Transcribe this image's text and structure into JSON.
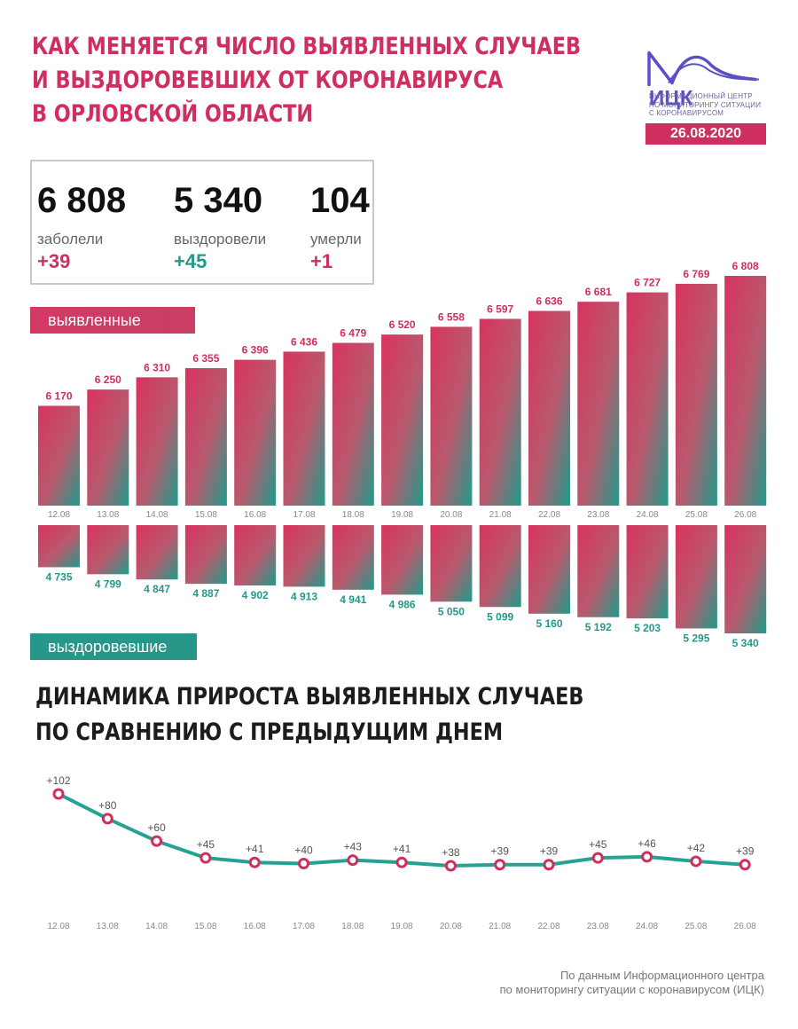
{
  "header": {
    "title_lines": [
      "КАК МЕНЯЕТСЯ ЧИСЛО ВЫЯВЛЕННЫХ СЛУЧАЕВ",
      "И ВЫЗДОРОВЕВШИХ ОТ КОРОНАВИРУСА",
      "В ОРЛОВСКОЙ ОБЛАСТИ"
    ],
    "logo_text": "ИЦК",
    "logo_caption": [
      "ИНФОРМАЦИОННЫЙ ЦЕНТР",
      "ПО МОНИТОРИНГУ СИТУАЦИИ",
      "С КОРОНАВИРУСОМ"
    ],
    "date": "26.08.2020"
  },
  "summary": [
    {
      "value": "6 808",
      "label": "заболели",
      "delta": "+39"
    },
    {
      "value": "5 340",
      "label": "выздоровели",
      "delta": "+45"
    },
    {
      "value": "104",
      "label": "умерли",
      "delta": "+1"
    }
  ],
  "colors": {
    "accent_red": "#cf2f5e",
    "accent_green": "#23988a",
    "line": "#25a294"
  },
  "tags": {
    "cases": "выявленные случаи",
    "recovered": "выздоровевшие"
  },
  "subtitle_lines": [
    "ДИНАМИКА ПРИРОСТА ВЫЯВЛЕННЫХ СЛУЧАЕВ",
    "ПО СРАВНЕНИЮ С ПРЕДЫДУЩИМ ДНЕМ"
  ],
  "source_lines": [
    "По данным Информационного центра",
    "по мониторингу ситуации с коронавирусом (ИЦК)"
  ],
  "chart_data": [
    {
      "type": "bar",
      "categories": [
        "12.08",
        "13.08",
        "14.08",
        "15.08",
        "16.08",
        "17.08",
        "18.08",
        "19.08",
        "20.08",
        "21.08",
        "22.08",
        "23.08",
        "24.08",
        "25.08",
        "26.08"
      ],
      "series": [
        {
          "name": "выявленные случаи",
          "values": [
            6170,
            6250,
            6310,
            6355,
            6396,
            6436,
            6479,
            6520,
            6558,
            6597,
            6636,
            6681,
            6727,
            6769,
            6808
          ],
          "labels": [
            "6 170",
            "6 250",
            "6 310",
            "6 355",
            "6 396",
            "6 436",
            "6 479",
            "6 520",
            "6 558",
            "6 597",
            "6 636",
            "6 681",
            "6 727",
            "6 769",
            "6 808"
          ]
        },
        {
          "name": "выздоровевшие",
          "values": [
            4735,
            4799,
            4847,
            4887,
            4902,
            4913,
            4941,
            4986,
            5050,
            5099,
            5160,
            5192,
            5203,
            5295,
            5340
          ],
          "labels": [
            "4 735",
            "4 799",
            "4 847",
            "4 887",
            "4 902",
            "4 913",
            "4 941",
            "4 986",
            "5 050",
            "5 099",
            "5 160",
            "5 192",
            "5 203",
            "5 295",
            "5 340"
          ]
        }
      ]
    },
    {
      "type": "line",
      "categories": [
        "12.08",
        "13.08",
        "14.08",
        "15.08",
        "16.08",
        "17.08",
        "18.08",
        "19.08",
        "20.08",
        "21.08",
        "22.08",
        "23.08",
        "24.08",
        "25.08",
        "26.08"
      ],
      "values": [
        102,
        80,
        60,
        45,
        41,
        40,
        43,
        41,
        38,
        39,
        39,
        45,
        46,
        42,
        39
      ],
      "labels": [
        "+102",
        "+80",
        "+60",
        "+45",
        "+41",
        "+40",
        "+43",
        "+41",
        "+38",
        "+39",
        "+39",
        "+45",
        "+46",
        "+42",
        "+39"
      ]
    }
  ]
}
